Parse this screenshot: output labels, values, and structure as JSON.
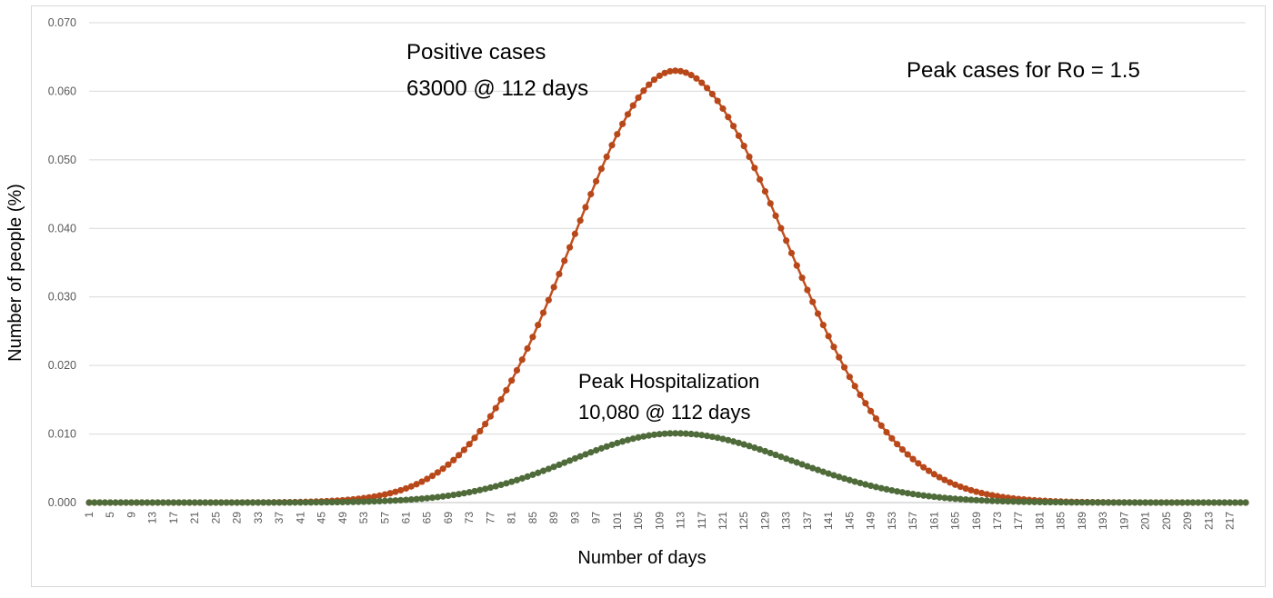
{
  "chart_data": {
    "type": "line",
    "title": "",
    "xlabel": "Number of days",
    "ylabel": "Number of people (%)",
    "xlim": [
      1,
      220
    ],
    "ylim": [
      0,
      0.07
    ],
    "y_ticks": [
      "0.000",
      "0.010",
      "0.020",
      "0.030",
      "0.040",
      "0.050",
      "0.060",
      "0.070"
    ],
    "x_tick_step": 4,
    "x_tick_start": 1,
    "x_tick_end": 217,
    "grid": "horizontal",
    "legend": "none",
    "markers": true,
    "series": [
      {
        "color": "#c0501f",
        "marker_color": "#b8481a",
        "curve": "gaussian",
        "peak_day": 112,
        "peak_value": 0.063,
        "spread_days_left": 19.5,
        "spread_days_right": 21
      },
      {
        "color": "#548235",
        "marker_color": "#4f6b3a",
        "curve": "gaussian",
        "peak_day": 112,
        "peak_value": 0.0101,
        "spread_days_left": 20,
        "spread_days_right": 22
      }
    ],
    "annotations": [
      {
        "line1": "Positive cases",
        "line2": "63000 @ 112 days"
      },
      {
        "line1": "Peak Hospitalization",
        "line2": "10,080 @ 112 days"
      },
      {
        "line1": "Peak cases for Ro = 1.5"
      }
    ]
  }
}
